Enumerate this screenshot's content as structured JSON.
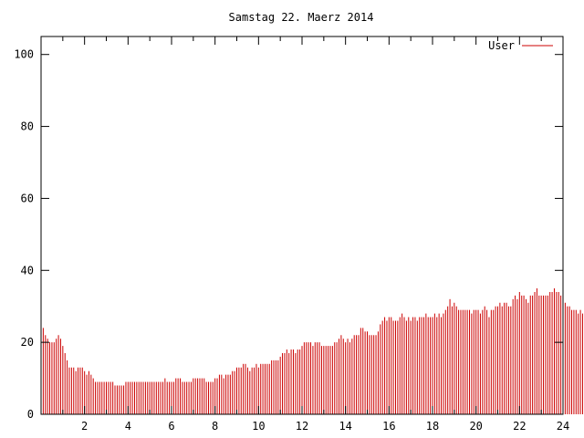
{
  "chart_data": {
    "type": "bar",
    "title": "Samstag 22. Maerz 2014",
    "xlabel": "",
    "ylabel": "",
    "xlim": [
      0,
      24
    ],
    "ylim": [
      0,
      105
    ],
    "x_ticks": [
      2,
      4,
      6,
      8,
      10,
      12,
      14,
      16,
      18,
      20,
      22,
      24
    ],
    "y_ticks": [
      0,
      20,
      40,
      60,
      80,
      100
    ],
    "grid": false,
    "legend_position": "top-right",
    "interval_hours": 0.1,
    "series": [
      {
        "name": "User",
        "color": "#cc0000",
        "values": [
          25,
          24,
          22,
          21,
          20,
          20,
          20,
          21,
          22,
          21,
          19,
          17,
          15,
          13,
          13,
          13,
          12,
          13,
          13,
          13,
          12,
          11,
          12,
          11,
          10,
          9,
          9,
          9,
          9,
          9,
          9,
          9,
          9,
          9,
          8,
          8,
          8,
          8,
          8,
          9,
          9,
          9,
          9,
          9,
          9,
          9,
          9,
          9,
          9,
          9,
          9,
          9,
          9,
          9,
          9,
          9,
          9,
          10,
          9,
          9,
          9,
          9,
          10,
          10,
          10,
          9,
          9,
          9,
          9,
          9,
          10,
          10,
          10,
          10,
          10,
          10,
          9,
          9,
          9,
          9,
          10,
          10,
          11,
          11,
          10,
          11,
          11,
          11,
          12,
          12,
          13,
          13,
          13,
          14,
          14,
          13,
          12,
          13,
          13,
          14,
          13,
          14,
          14,
          14,
          14,
          14,
          15,
          15,
          15,
          15,
          16,
          17,
          17,
          18,
          17,
          18,
          18,
          17,
          18,
          18,
          19,
          20,
          20,
          20,
          20,
          19,
          20,
          20,
          20,
          19,
          19,
          19,
          19,
          19,
          19,
          20,
          20,
          21,
          22,
          21,
          20,
          21,
          20,
          21,
          22,
          22,
          22,
          24,
          24,
          23,
          23,
          22,
          22,
          22,
          22,
          23,
          25,
          26,
          27,
          26,
          27,
          27,
          26,
          26,
          26,
          27,
          28,
          27,
          26,
          27,
          26,
          27,
          27,
          26,
          27,
          27,
          27,
          28,
          27,
          27,
          27,
          28,
          27,
          28,
          27,
          28,
          29,
          30,
          32,
          30,
          31,
          30,
          29,
          29,
          29,
          29,
          29,
          29,
          28,
          29,
          29,
          29,
          28,
          29,
          30,
          29,
          27,
          29,
          29,
          30,
          30,
          31,
          30,
          31,
          31,
          30,
          30,
          32,
          33,
          32,
          34,
          33,
          33,
          32,
          31,
          33,
          33,
          34,
          35,
          33,
          33,
          33,
          33,
          33,
          34,
          34,
          35,
          34,
          34,
          33,
          32,
          31,
          30,
          30,
          29,
          29,
          29,
          28,
          29,
          28,
          27,
          27,
          28,
          29,
          30,
          29,
          29,
          29,
          29,
          30,
          30,
          30,
          31,
          31,
          32,
          31,
          31,
          33,
          33,
          34,
          31,
          31,
          28,
          28,
          29,
          30
        ]
      }
    ]
  }
}
